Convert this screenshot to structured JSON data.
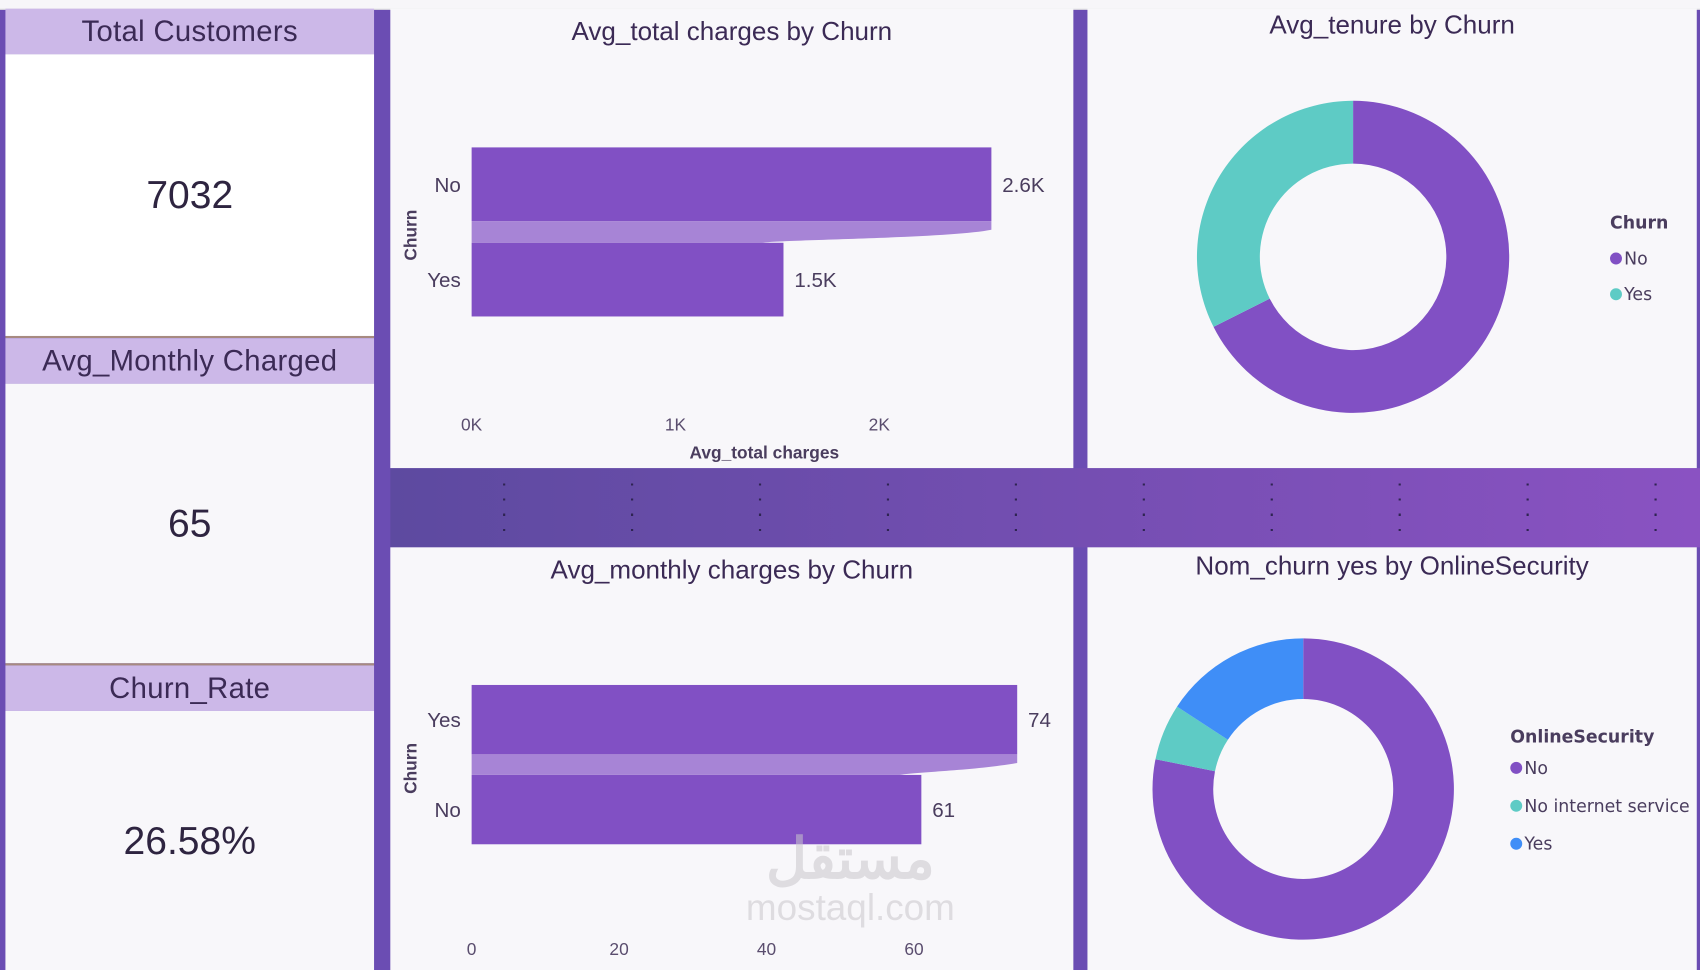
{
  "kpis": [
    {
      "label": "Total Customers",
      "value": "7032"
    },
    {
      "label": "Avg_Monthly Charged",
      "value": "65"
    },
    {
      "label": "Churn_Rate",
      "value": "26.58%"
    }
  ],
  "colors": {
    "primary": "#8150c4",
    "band": "#a784d6",
    "teal": "#5ecbc5",
    "blue": "#3f8ef7",
    "header": "#ccb8e8"
  },
  "chart_data": [
    {
      "type": "bar",
      "title": "Avg_total charges by Churn",
      "xlabel": "Avg_total charges",
      "ylabel": "Churn",
      "categories": [
        "No",
        "Yes"
      ],
      "values": [
        2550,
        1530
      ],
      "data_labels": [
        "2.6K",
        "1.5K"
      ],
      "xticks": [
        "0K",
        "1K",
        "2K"
      ],
      "xtick_values": [
        0,
        1000,
        2000
      ],
      "orientation": "horizontal"
    },
    {
      "type": "pie",
      "title": "Avg_tenure by Churn",
      "donut": true,
      "legend_title": "Churn",
      "categories": [
        "No",
        "Yes"
      ],
      "values": [
        67.6,
        32.4
      ],
      "colors": [
        "#8150c4",
        "#5ecbc5"
      ],
      "legend": "right"
    },
    {
      "type": "bar",
      "title": "Avg_monthly charges by Churn",
      "ylabel": "Churn",
      "categories": [
        "Yes",
        "No"
      ],
      "values": [
        74,
        61
      ],
      "data_labels": [
        "74",
        "61"
      ],
      "xticks": [
        "0",
        "20",
        "40",
        "60"
      ],
      "xtick_values": [
        0,
        20,
        40,
        60
      ],
      "orientation": "horizontal"
    },
    {
      "type": "pie",
      "title": "Nom_churn yes by OnlineSecurity",
      "donut": true,
      "legend_title": "OnlineSecurity",
      "categories": [
        "No",
        "No internet service",
        "Yes"
      ],
      "values": [
        1461,
        113,
        295
      ],
      "colors": [
        "#8150c4",
        "#5ecbc5",
        "#3f8ef7"
      ],
      "legend": "right"
    }
  ],
  "watermark": {
    "arabic": "مستقل",
    "latin": "mostaql.com"
  }
}
